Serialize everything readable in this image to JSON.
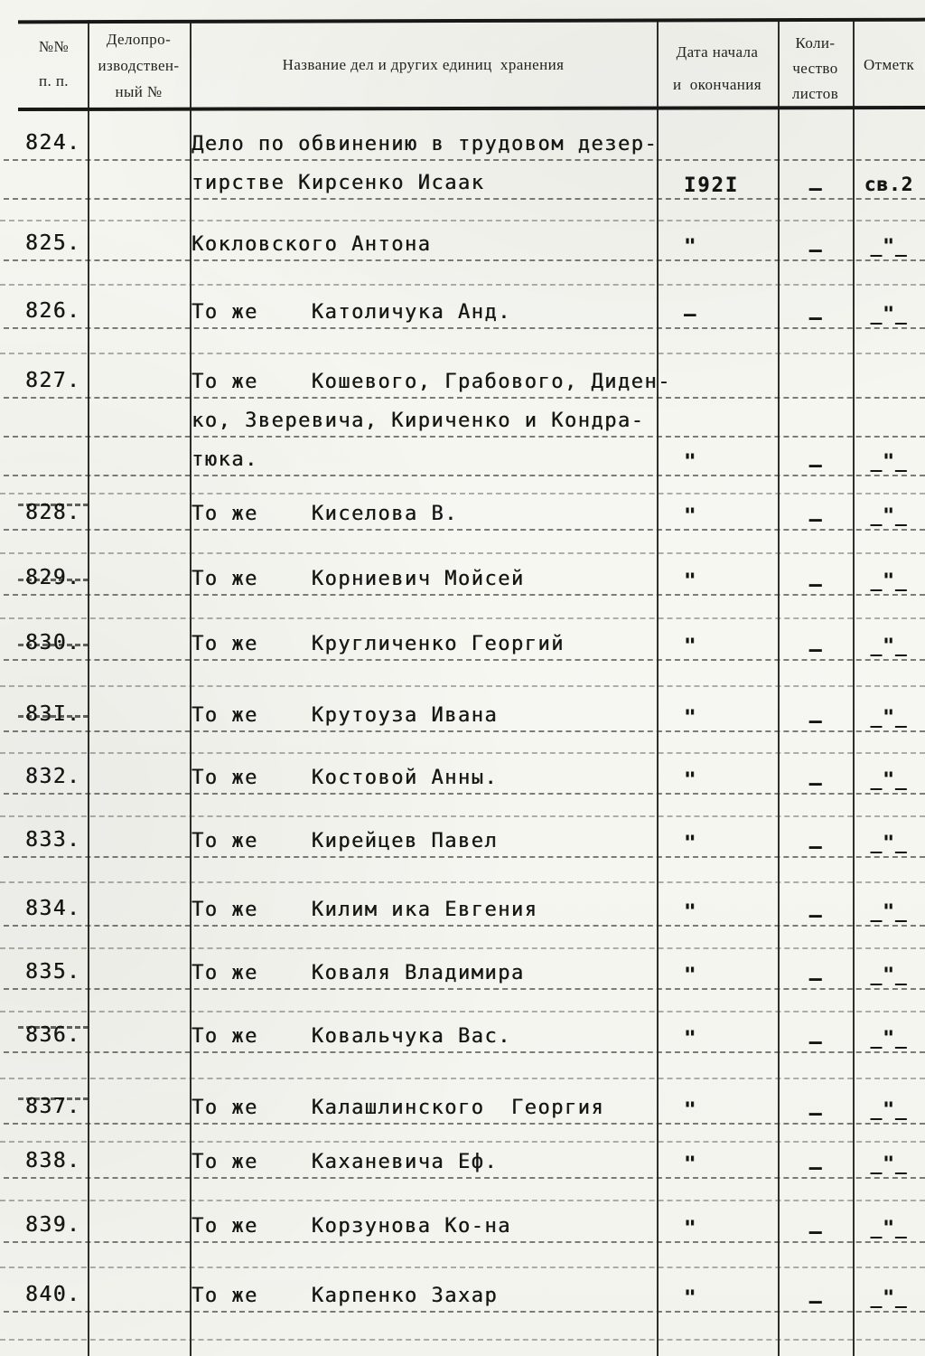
{
  "page": {
    "description": "Scanned typewritten archival inventory sheet (Russian), cases 824-840",
    "header": {
      "col1": [
        "№№",
        "п. п."
      ],
      "col2": [
        "Делопро-",
        "изводствен-",
        "ный №"
      ],
      "col3": "Название дел и других единиц  хранения",
      "col4": [
        "Дата начала",
        "и  окончания"
      ],
      "col5": [
        "Коли-",
        "чество",
        "листов"
      ],
      "col6": "Отметк"
    },
    "rows": [
      {
        "num": "824.",
        "lines": [
          "Дело по обвинению в трудовом дезер-",
          "тирстве Кирсенко Исаак"
        ],
        "date": "I92I",
        "sheets": "–",
        "mark": "св.2",
        "vals_line": 1
      },
      {
        "num": "825.",
        "lines": [
          "Кокловского Антона"
        ],
        "date": "\"",
        "sheets": "–",
        "mark": "_\"_"
      },
      {
        "num": "826.",
        "lines": [
          "То же    Католичука Анд."
        ],
        "date": "–",
        "sheets": "–",
        "mark": "_\"_"
      },
      {
        "num": "827.",
        "lines": [
          "То же    Кошевого, Грабового, Диден-",
          "ко, Зверевича, Кириченко и Кондра-",
          "тюка."
        ],
        "date": "\"",
        "sheets": "–",
        "mark": "_\"_",
        "vals_line": 2
      },
      {
        "num": "828.",
        "lines": [
          "То же    Киселова В."
        ],
        "date": "\"",
        "sheets": "–",
        "mark": "_\"_",
        "strike": "over"
      },
      {
        "num": "829.",
        "lines": [
          "То же    Корниевич Мойсей"
        ],
        "date": "\"",
        "sheets": "–",
        "mark": "_\"_",
        "strike": "through"
      },
      {
        "num": "830.",
        "lines": [
          "То же    Кругличенко Георгий"
        ],
        "date": "\"",
        "sheets": "–",
        "mark": "_\"_",
        "strike": "through"
      },
      {
        "num": "83I.",
        "lines": [
          "То же    Крутоуза Ивана"
        ],
        "date": "\"",
        "sheets": "–",
        "mark": "_\"_",
        "strike": "through"
      },
      {
        "num": "832.",
        "lines": [
          "То же    Костовой Анны."
        ],
        "date": "\"",
        "sheets": "–",
        "mark": "_\"_"
      },
      {
        "num": "833.",
        "lines": [
          "То же    Кирейцев Павел"
        ],
        "date": "\"",
        "sheets": "–",
        "mark": "_\"_"
      },
      {
        "num": "834.",
        "lines": [
          "То же    Килим ика Евгения"
        ],
        "date": "\"",
        "sheets": "–",
        "mark": "_\"_"
      },
      {
        "num": "835.",
        "lines": [
          "То же    Коваля Владимира"
        ],
        "date": "\"",
        "sheets": "–",
        "mark": "_\"_"
      },
      {
        "num": "836.",
        "lines": [
          "То же    Ковальчука Вас."
        ],
        "date": "\"",
        "sheets": "–",
        "mark": "_\"_",
        "strike": "over"
      },
      {
        "num": "837.",
        "lines": [
          "То же    Калашлинского  Георгия"
        ],
        "date": "\"",
        "sheets": "–",
        "mark": "_\"_",
        "strike": "over"
      },
      {
        "num": "838.",
        "lines": [
          "То же    Каханевича Еф."
        ],
        "date": "\"",
        "sheets": "–",
        "mark": "_\"_"
      },
      {
        "num": "839.",
        "lines": [
          "То же    Корзунова Ко-на"
        ],
        "date": "\"",
        "sheets": "–",
        "mark": "_\"_"
      },
      {
        "num": "840.",
        "lines": [
          "То же    Карпенко Захар"
        ],
        "date": "\"",
        "sheets": "–",
        "mark": "_\"_"
      }
    ]
  }
}
